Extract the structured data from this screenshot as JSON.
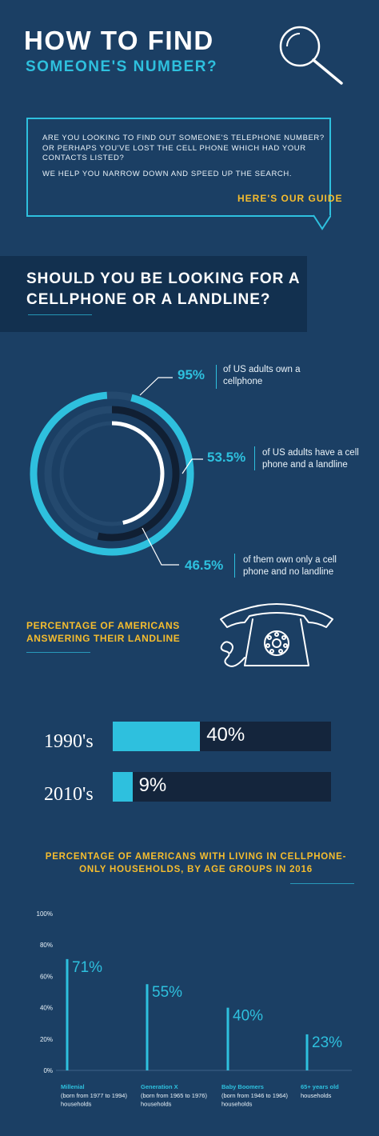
{
  "header": {
    "title_line1": "HOW TO FIND",
    "title_line2": "SOMEONE'S NUMBER?"
  },
  "intro": {
    "question": "ARE YOU LOOKING TO FIND OUT SOMEONE'S TELEPHONE NUMBER? OR PERHAPS YOU'VE LOST THE CELL PHONE WHICH HAD YOUR CONTACTS LISTED?",
    "help": "WE HELP YOU NARROW DOWN AND SPEED UP THE SEARCH.",
    "guide_link": "HERE'S OUR GUIDE"
  },
  "section1": {
    "title": "SHOULD YOU BE LOOKING FOR A CELLPHONE OR A LANDLINE?"
  },
  "section2": {
    "title": "PERCENTAGE OF AMERICANS ANSWERING THEIR LANDLINE"
  },
  "section3": {
    "title": "PERCENTAGE OF AMERICANS WITH LIVING IN CELLPHONE-ONLY HOUSEHOLDS, BY AGE GROUPS IN 2016"
  },
  "colors": {
    "background": "#1b3f64",
    "accent": "#2ec0de",
    "highlight": "#f6bd2e",
    "dark_track": "#14253c",
    "ring_track": "#24496e",
    "white_ring": "#ffffff"
  },
  "icons": [
    "search-icon",
    "rotary-phone-icon"
  ],
  "chart_data": [
    {
      "type": "pie",
      "subtype": "concentric-rings",
      "series": [
        {
          "value": 95,
          "value_label": "95%",
          "text": "of US adults own a cellphone"
        },
        {
          "value": 53.5,
          "value_label": "53.5%",
          "text": "of US adults have a cell phone and a landline"
        },
        {
          "value": 46.5,
          "value_label": "46.5%",
          "text": "of them own only a cell phone and no landline"
        }
      ]
    },
    {
      "type": "bar",
      "orientation": "horizontal",
      "categories": [
        "1990's",
        "2010's"
      ],
      "values": [
        40,
        9
      ],
      "value_labels": [
        "40%",
        "9%"
      ],
      "xlim": [
        0,
        100
      ]
    },
    {
      "type": "bar",
      "orientation": "vertical",
      "categories": [
        {
          "name": "Millenial",
          "sub": [
            "(born from 1977 to 1994)",
            "households"
          ]
        },
        {
          "name": "Generation X",
          "sub": [
            "(born from 1965 to 1976)",
            "households"
          ]
        },
        {
          "name": "Baby Boomers",
          "sub": [
            "(born from 1946 to 1964)",
            "households"
          ]
        },
        {
          "name": "65+ years old",
          "sub": [
            "households"
          ]
        }
      ],
      "values": [
        71,
        55,
        40,
        23
      ],
      "value_labels": [
        "71%",
        "55%",
        "40%",
        "23%"
      ],
      "ylim": [
        0,
        100
      ],
      "yticks": [
        "0%",
        "20%",
        "40%",
        "60%",
        "80%",
        "100%"
      ]
    }
  ]
}
